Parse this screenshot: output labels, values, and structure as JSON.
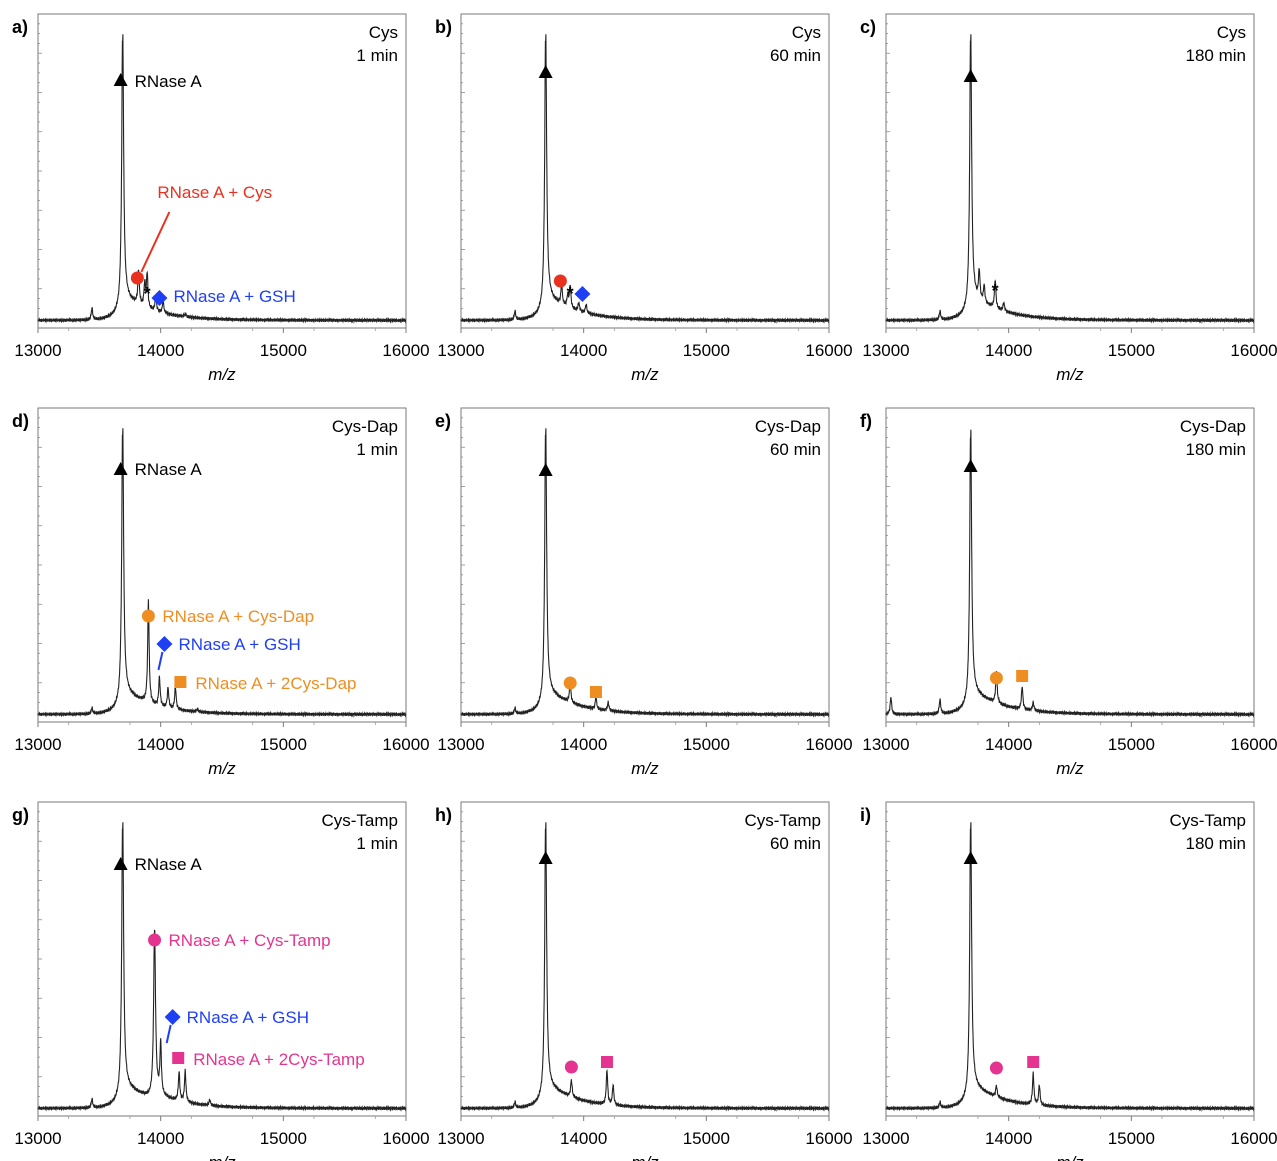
{
  "figure": {
    "xlabel": "m/z",
    "colors": {
      "cys": "#e8311f",
      "gsh": "#1f3ff5",
      "dap": "#ee8e22",
      "tamp": "#e5348f",
      "main": "#000000",
      "trace": "#222222"
    }
  },
  "chart_data": [
    {
      "type": "line",
      "panel": "a)",
      "reagent": "Cys",
      "time": "1 min",
      "xlim": [
        13000,
        16000
      ],
      "xticks": [
        13000,
        14000,
        15000,
        16000
      ],
      "xlabel": "m/z",
      "series": [
        {
          "x": [
            13000,
            13420,
            13440,
            13470,
            13690,
            13820,
            13870,
            13890,
            13960,
            14020,
            14200,
            16000
          ],
          "y": [
            0.02,
            0.02,
            0.06,
            0.02,
            0.99,
            0.14,
            0.1,
            0.14,
            0.07,
            0.06,
            0.03,
            0.02
          ]
        }
      ],
      "annotations": [
        {
          "type": "marker",
          "symbol": "triangle",
          "color": "main",
          "label": "RNase A",
          "x": 13690
        },
        {
          "type": "marker",
          "symbol": "circle",
          "color": "cys",
          "label": "RNase A + Cys",
          "x": 13810
        },
        {
          "type": "marker",
          "symbol": "asterisk",
          "color": "main",
          "label": "*",
          "x": 13890
        },
        {
          "type": "marker",
          "symbol": "diamond",
          "color": "gsh",
          "label": "RNase A + GSH",
          "x": 13990
        }
      ]
    },
    {
      "type": "line",
      "panel": "b)",
      "reagent": "Cys",
      "time": "60 min",
      "xlim": [
        13000,
        16000
      ],
      "xticks": [
        13000,
        14000,
        15000,
        16000
      ],
      "xlabel": "m/z",
      "series": [
        {
          "x": [
            13000,
            13420,
            13440,
            13470,
            13690,
            13820,
            13870,
            13890,
            13960,
            14020,
            14200,
            16000
          ],
          "y": [
            0.02,
            0.02,
            0.05,
            0.02,
            0.99,
            0.09,
            0.06,
            0.1,
            0.05,
            0.05,
            0.02,
            0.02
          ]
        }
      ],
      "annotations": [
        {
          "type": "marker",
          "symbol": "triangle",
          "color": "main",
          "label": "",
          "x": 13690
        },
        {
          "type": "marker",
          "symbol": "circle",
          "color": "cys",
          "label": "",
          "x": 13810
        },
        {
          "type": "marker",
          "symbol": "asterisk",
          "color": "main",
          "label": "*",
          "x": 13890
        },
        {
          "type": "marker",
          "symbol": "diamond",
          "color": "gsh",
          "label": "",
          "x": 13990
        }
      ]
    },
    {
      "type": "line",
      "panel": "c)",
      "reagent": "Cys",
      "time": "180 min",
      "xlim": [
        13000,
        16000
      ],
      "xticks": [
        13000,
        14000,
        15000,
        16000
      ],
      "xlabel": "m/z",
      "series": [
        {
          "x": [
            13000,
            13420,
            13440,
            13470,
            13690,
            13760,
            13800,
            13890,
            13960,
            14200,
            16000
          ],
          "y": [
            0.02,
            0.02,
            0.05,
            0.02,
            0.99,
            0.12,
            0.08,
            0.12,
            0.05,
            0.02,
            0.02
          ]
        }
      ],
      "annotations": [
        {
          "type": "marker",
          "symbol": "triangle",
          "color": "main",
          "label": "",
          "x": 13690
        },
        {
          "type": "marker",
          "symbol": "asterisk",
          "color": "main",
          "label": "*",
          "x": 13890
        }
      ]
    },
    {
      "type": "line",
      "panel": "d)",
      "reagent": "Cys-Dap",
      "time": "1 min",
      "xlim": [
        13000,
        16000
      ],
      "xticks": [
        13000,
        14000,
        15000,
        16000
      ],
      "xlabel": "m/z",
      "series": [
        {
          "x": [
            13000,
            13420,
            13440,
            13470,
            13690,
            13900,
            13990,
            14060,
            14120,
            14300,
            16000
          ],
          "y": [
            0.02,
            0.02,
            0.04,
            0.02,
            0.99,
            0.38,
            0.12,
            0.09,
            0.1,
            0.03,
            0.02
          ]
        }
      ],
      "annotations": [
        {
          "type": "marker",
          "symbol": "triangle",
          "color": "main",
          "label": "RNase A",
          "x": 13690
        },
        {
          "type": "marker",
          "symbol": "circle",
          "color": "dap",
          "label": "RNase A + Cys-Dap",
          "x": 13900
        },
        {
          "type": "marker",
          "symbol": "diamond",
          "color": "gsh",
          "label": "RNase A + GSH",
          "x": 13990
        },
        {
          "type": "marker",
          "symbol": "square",
          "color": "dap",
          "label": "RNase A + 2Cys-Dap",
          "x": 14120
        }
      ]
    },
    {
      "type": "line",
      "panel": "e)",
      "reagent": "Cys-Dap",
      "time": "60 min",
      "xlim": [
        13000,
        16000
      ],
      "xticks": [
        13000,
        14000,
        15000,
        16000
      ],
      "xlabel": "m/z",
      "series": [
        {
          "x": [
            13000,
            13420,
            13440,
            13470,
            13690,
            13890,
            14100,
            14200,
            16000
          ],
          "y": [
            0.02,
            0.02,
            0.04,
            0.02,
            0.99,
            0.09,
            0.06,
            0.05,
            0.02
          ]
        }
      ],
      "annotations": [
        {
          "type": "marker",
          "symbol": "triangle",
          "color": "main",
          "label": "",
          "x": 13690
        },
        {
          "type": "marker",
          "symbol": "circle",
          "color": "dap",
          "label": "",
          "x": 13890
        },
        {
          "type": "marker",
          "symbol": "square",
          "color": "dap",
          "label": "",
          "x": 14100
        }
      ]
    },
    {
      "type": "line",
      "panel": "f)",
      "reagent": "Cys-Dap",
      "time": "180 min",
      "xlim": [
        13000,
        16000
      ],
      "xticks": [
        13000,
        14000,
        15000,
        16000
      ],
      "xlabel": "m/z",
      "series": [
        {
          "x": [
            13000,
            13040,
            13420,
            13440,
            13690,
            13900,
            14110,
            14200,
            16000
          ],
          "y": [
            0.02,
            0.08,
            0.02,
            0.07,
            0.98,
            0.13,
            0.1,
            0.05,
            0.02
          ]
        }
      ],
      "annotations": [
        {
          "type": "marker",
          "symbol": "triangle",
          "color": "main",
          "label": "",
          "x": 13690
        },
        {
          "type": "marker",
          "symbol": "circle",
          "color": "dap",
          "label": "",
          "x": 13900
        },
        {
          "type": "marker",
          "symbol": "square",
          "color": "dap",
          "label": "",
          "x": 14110
        }
      ]
    },
    {
      "type": "line",
      "panel": "g)",
      "reagent": "Cys-Tamp",
      "time": "1 min",
      "xlim": [
        13000,
        16000
      ],
      "xticks": [
        13000,
        14000,
        15000,
        16000
      ],
      "xlabel": "m/z",
      "series": [
        {
          "x": [
            13000,
            13420,
            13440,
            13470,
            13690,
            13950,
            14000,
            14150,
            14200,
            14400,
            16000
          ],
          "y": [
            0.02,
            0.02,
            0.05,
            0.02,
            0.99,
            0.61,
            0.2,
            0.12,
            0.13,
            0.04,
            0.02
          ]
        }
      ],
      "annotations": [
        {
          "type": "marker",
          "symbol": "triangle",
          "color": "main",
          "label": "RNase A",
          "x": 13690
        },
        {
          "type": "marker",
          "symbol": "circle",
          "color": "tamp",
          "label": "RNase A + Cys-Tamp",
          "x": 13950
        },
        {
          "type": "marker",
          "symbol": "diamond",
          "color": "gsh",
          "label": "RNase A + GSH",
          "x": 14000
        },
        {
          "type": "marker",
          "symbol": "square",
          "color": "tamp",
          "label": "RNase A + 2Cys-Tamp",
          "x": 14200
        }
      ]
    },
    {
      "type": "line",
      "panel": "h)",
      "reagent": "Cys-Tamp",
      "time": "60 min",
      "xlim": [
        13000,
        16000
      ],
      "xticks": [
        13000,
        14000,
        15000,
        16000
      ],
      "xlabel": "m/z",
      "series": [
        {
          "x": [
            13000,
            13420,
            13440,
            13470,
            13690,
            13900,
            14190,
            14240,
            16000
          ],
          "y": [
            0.02,
            0.02,
            0.04,
            0.02,
            0.99,
            0.08,
            0.14,
            0.09,
            0.02
          ]
        }
      ],
      "annotations": [
        {
          "type": "marker",
          "symbol": "triangle",
          "color": "main",
          "label": "",
          "x": 13690
        },
        {
          "type": "marker",
          "symbol": "circle",
          "color": "tamp",
          "label": "",
          "x": 13900
        },
        {
          "type": "marker",
          "symbol": "square",
          "color": "tamp",
          "label": "",
          "x": 14190
        }
      ]
    },
    {
      "type": "line",
      "panel": "i)",
      "reagent": "Cys-Tamp",
      "time": "180 min",
      "xlim": [
        13000,
        16000
      ],
      "xticks": [
        13000,
        14000,
        15000,
        16000
      ],
      "xlabel": "m/z",
      "series": [
        {
          "x": [
            13000,
            13420,
            13440,
            13470,
            13690,
            13900,
            14200,
            14250,
            16000
          ],
          "y": [
            0.02,
            0.02,
            0.04,
            0.02,
            0.99,
            0.06,
            0.13,
            0.09,
            0.02
          ]
        }
      ],
      "annotations": [
        {
          "type": "marker",
          "symbol": "triangle",
          "color": "main",
          "label": "",
          "x": 13690
        },
        {
          "type": "marker",
          "symbol": "circle",
          "color": "tamp",
          "label": "",
          "x": 13900
        },
        {
          "type": "marker",
          "symbol": "square",
          "color": "tamp",
          "label": "",
          "x": 14200
        }
      ]
    }
  ]
}
